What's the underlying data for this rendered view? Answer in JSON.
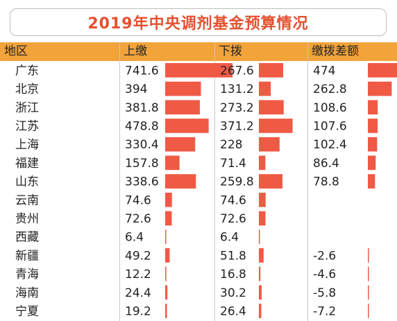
{
  "title": "2019年中央调剂基金预算情况",
  "colors": {
    "title": "#e4502f",
    "header_bg": "#f2a33a",
    "bar": "#ef5a45"
  },
  "chart_data": {
    "type": "table",
    "title": "2019年中央调剂基金预算情况",
    "columns": [
      "地区",
      "上缴",
      "下拨",
      "缴拨差额"
    ],
    "rows": [
      {
        "region": "广东",
        "shangjiao": 741.6,
        "xiabo": 267.6,
        "diff": 474
      },
      {
        "region": "北京",
        "shangjiao": 394,
        "xiabo": 131.2,
        "diff": 262.8
      },
      {
        "region": "浙江",
        "shangjiao": 381.8,
        "xiabo": 273.2,
        "diff": 108.6
      },
      {
        "region": "江苏",
        "shangjiao": 478.8,
        "xiabo": 371.2,
        "diff": 107.6
      },
      {
        "region": "上海",
        "shangjiao": 330.4,
        "xiabo": 228,
        "diff": 102.4
      },
      {
        "region": "福建",
        "shangjiao": 157.8,
        "xiabo": 71.4,
        "diff": 86.4
      },
      {
        "region": "山东",
        "shangjiao": 338.6,
        "xiabo": 259.8,
        "diff": 78.8
      },
      {
        "region": "云南",
        "shangjiao": 74.6,
        "xiabo": 74.6,
        "diff": null
      },
      {
        "region": "贵州",
        "shangjiao": 72.6,
        "xiabo": 72.6,
        "diff": null
      },
      {
        "region": "西藏",
        "shangjiao": 6.4,
        "xiabo": 6.4,
        "diff": null
      },
      {
        "region": "新疆",
        "shangjiao": 49.2,
        "xiabo": 51.8,
        "diff": -2.6
      },
      {
        "region": "青海",
        "shangjiao": 12.2,
        "xiabo": 16.8,
        "diff": -4.6
      },
      {
        "region": "海南",
        "shangjiao": 24.4,
        "xiabo": 30.2,
        "diff": -5.8
      },
      {
        "region": "宁夏",
        "shangjiao": 19.2,
        "xiabo": 26.4,
        "diff": -7.2
      }
    ]
  }
}
